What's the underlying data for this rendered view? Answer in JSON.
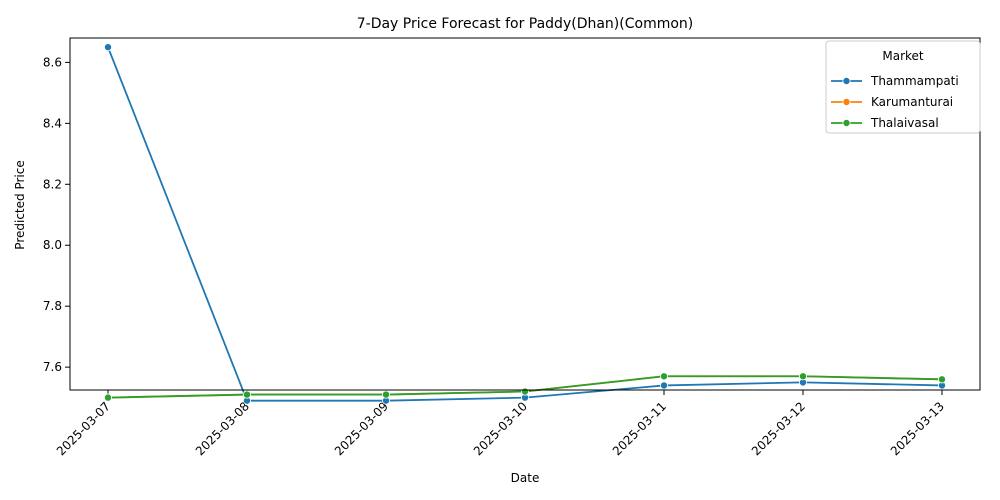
{
  "chart_data": {
    "type": "line",
    "title": "7-Day Price Forecast for Paddy(Dhan)(Common)",
    "xlabel": "Date",
    "ylabel": "Predicted Price",
    "categories": [
      "2025-03-07",
      "2025-03-08",
      "2025-03-09",
      "2025-03-10",
      "2025-03-11",
      "2025-03-12",
      "2025-03-13"
    ],
    "ylim": [
      7.525,
      8.68
    ],
    "yticks": [
      7.6,
      7.8,
      8.0,
      8.2,
      8.4,
      8.6
    ],
    "ytick_labels": [
      "7.6",
      "7.8",
      "8.0",
      "8.2",
      "8.4",
      "8.6"
    ],
    "legend": {
      "title": "Market",
      "position": "top-right"
    },
    "series": [
      {
        "name": "Thammampati",
        "color": "#1f77b4",
        "values": [
          8.65,
          7.49,
          7.49,
          7.5,
          7.54,
          7.55,
          7.54
        ]
      },
      {
        "name": "Karumanturai",
        "color": "#ff7f0e",
        "values": [
          7.5,
          7.51,
          7.51,
          7.52,
          7.57,
          7.57,
          7.56
        ]
      },
      {
        "name": "Thalaivasal",
        "color": "#2ca02c",
        "values": [
          7.5,
          7.51,
          7.51,
          7.52,
          7.57,
          7.57,
          7.56
        ]
      }
    ]
  }
}
